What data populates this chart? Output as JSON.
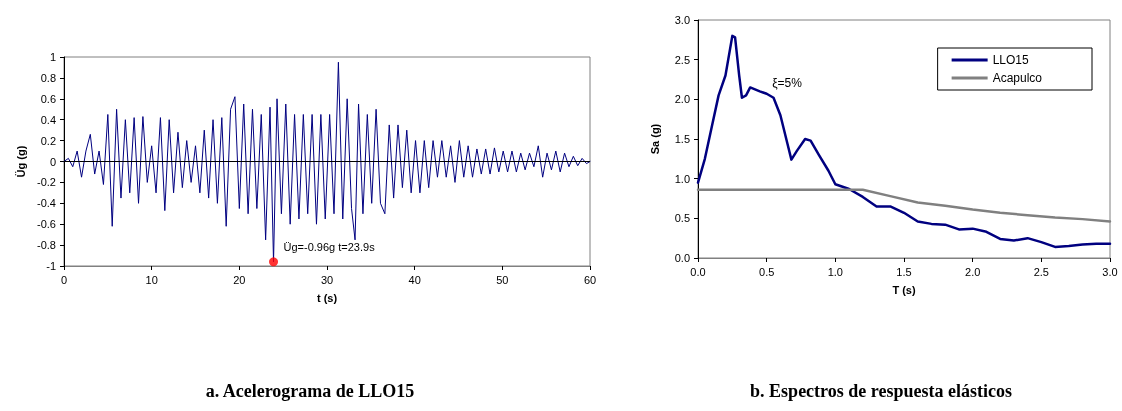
{
  "chart_data": [
    {
      "type": "line",
      "title": "a. Acelerograma de LLO15",
      "xlabel": "t (s)",
      "ylabel": "Üg (g)",
      "xlim": [
        0,
        60
      ],
      "xticks": [
        0,
        10,
        20,
        30,
        40,
        50,
        60
      ],
      "ylim": [
        -1,
        1
      ],
      "yticks": [
        -1,
        -0.8,
        -0.6,
        -0.4,
        -0.2,
        0,
        0.2,
        0.4,
        0.6,
        0.8,
        1
      ],
      "grid": false,
      "legend": false,
      "marker": "none",
      "series": [
        {
          "color": "#000080",
          "x": [
            0,
            0.5,
            1,
            1.5,
            2,
            2.5,
            3,
            3.5,
            4,
            4.5,
            5,
            5.5,
            6,
            6.5,
            7,
            7.5,
            8,
            8.5,
            9,
            9.5,
            10,
            10.5,
            11,
            11.5,
            12,
            12.5,
            13,
            13.5,
            14,
            14.5,
            15,
            15.5,
            16,
            16.5,
            17,
            17.5,
            18,
            18.5,
            19,
            19.5,
            20,
            20.5,
            21,
            21.5,
            22,
            22.5,
            23,
            23.5,
            23.9,
            24.3,
            24.8,
            25.3,
            25.8,
            26.3,
            26.8,
            27.3,
            27.8,
            28.3,
            28.8,
            29.3,
            29.8,
            30.3,
            30.8,
            31.3,
            31.8,
            32.3,
            32.8,
            33.2,
            33.6,
            34.1,
            34.6,
            35.1,
            35.6,
            36.1,
            36.6,
            37.1,
            37.6,
            38.1,
            38.6,
            39.1,
            39.6,
            40.1,
            40.6,
            41.1,
            41.6,
            42.1,
            42.6,
            43.1,
            43.6,
            44.1,
            44.6,
            45.1,
            45.6,
            46.1,
            46.6,
            47.1,
            47.6,
            48.1,
            48.6,
            49.1,
            49.6,
            50.1,
            50.6,
            51.1,
            51.6,
            52.1,
            52.6,
            53.1,
            53.6,
            54.1,
            54.6,
            55.1,
            55.6,
            56.1,
            56.6,
            57.1,
            57.6,
            58.1,
            58.6,
            59.1,
            59.6,
            60
          ],
          "values": [
            0,
            0.03,
            -0.05,
            0.1,
            -0.15,
            0.1,
            0.26,
            -0.12,
            0.1,
            -0.22,
            0.45,
            -0.62,
            0.5,
            -0.35,
            0.4,
            -0.3,
            0.42,
            -0.4,
            0.43,
            -0.2,
            0.15,
            -0.3,
            0.42,
            -0.47,
            0.4,
            -0.3,
            0.28,
            -0.25,
            0.2,
            -0.2,
            0.15,
            -0.3,
            0.3,
            -0.35,
            0.4,
            -0.4,
            0.42,
            -0.62,
            0.5,
            0.62,
            -0.45,
            0.55,
            -0.5,
            0.5,
            -0.45,
            0.45,
            -0.75,
            0.52,
            -0.96,
            0.6,
            -0.5,
            0.55,
            -0.6,
            0.45,
            -0.55,
            0.45,
            -0.5,
            0.45,
            -0.6,
            0.45,
            -0.55,
            0.45,
            -0.5,
            0.95,
            -0.55,
            0.6,
            -0.45,
            -0.75,
            0.55,
            -0.5,
            0.45,
            -0.4,
            0.5,
            -0.4,
            -0.5,
            0.35,
            -0.35,
            0.35,
            -0.25,
            0.3,
            -0.3,
            0.2,
            -0.3,
            0.2,
            -0.25,
            0.2,
            -0.15,
            0.2,
            -0.15,
            0.15,
            -0.2,
            0.2,
            -0.15,
            0.15,
            -0.15,
            0.12,
            -0.12,
            0.12,
            -0.12,
            0.13,
            -0.1,
            0.1,
            -0.1,
            0.1,
            -0.1,
            0.08,
            -0.08,
            0.08,
            -0.05,
            0.15,
            -0.15,
            0.08,
            -0.08,
            0.1,
            -0.1,
            0.08,
            -0.05,
            0.05,
            -0.04,
            0.03,
            -0.02,
            0
          ]
        },
        {
          "type": "scatter",
          "color": "#ff0000",
          "marker": "circle",
          "x": [
            23.9
          ],
          "values": [
            -0.96
          ]
        }
      ],
      "ref_lines": [
        {
          "axis": "y",
          "value": 0,
          "color": "#000000"
        }
      ],
      "annotations": [
        {
          "text": "Üg=-0.96g t=23.9s",
          "x": 23.9,
          "y": -0.96
        }
      ]
    },
    {
      "type": "line",
      "title": "b. Espectros de respuesta elásticos",
      "xlabel": "T (s)",
      "ylabel": "Sa (g)",
      "xlim": [
        0,
        3
      ],
      "xticks": [
        {
          "value": 0,
          "label": "0.0"
        },
        {
          "value": 0.5,
          "label": "0.5"
        },
        {
          "value": 1,
          "label": "1.0"
        },
        {
          "value": 1.5,
          "label": "1.5"
        },
        {
          "value": 2,
          "label": "2.0"
        },
        {
          "value": 2.5,
          "label": "2.5"
        },
        {
          "value": 3,
          "label": "3.0"
        }
      ],
      "ylim": [
        0,
        3
      ],
      "yticks": [
        {
          "value": 0,
          "label": "0.0"
        },
        {
          "value": 0.5,
          "label": "0.5"
        },
        {
          "value": 1,
          "label": "1.0"
        },
        {
          "value": 1.5,
          "label": "1.5"
        },
        {
          "value": 2,
          "label": "2.0"
        },
        {
          "value": 2.5,
          "label": "2.5"
        },
        {
          "value": 3,
          "label": "3.0"
        }
      ],
      "grid": false,
      "legend": "top right",
      "marker": "none",
      "series": [
        {
          "name": "LLO15",
          "color": "#000080",
          "x": [
            0,
            0.05,
            0.1,
            0.15,
            0.2,
            0.25,
            0.27,
            0.3,
            0.32,
            0.35,
            0.38,
            0.45,
            0.5,
            0.55,
            0.6,
            0.65,
            0.68,
            0.72,
            0.78,
            0.82,
            0.88,
            0.95,
            1.0,
            1.1,
            1.2,
            1.3,
            1.4,
            1.5,
            1.6,
            1.7,
            1.8,
            1.9,
            2.0,
            2.1,
            2.2,
            2.3,
            2.4,
            2.5,
            2.6,
            2.7,
            2.8,
            2.9,
            3.0
          ],
          "values": [
            0.95,
            1.25,
            1.65,
            2.05,
            2.3,
            2.8,
            2.78,
            2.3,
            2.02,
            2.05,
            2.15,
            2.1,
            2.07,
            2.02,
            1.8,
            1.45,
            1.24,
            1.35,
            1.5,
            1.48,
            1.3,
            1.1,
            0.93,
            0.87,
            0.77,
            0.65,
            0.65,
            0.57,
            0.46,
            0.43,
            0.42,
            0.36,
            0.37,
            0.33,
            0.24,
            0.22,
            0.25,
            0.2,
            0.14,
            0.15,
            0.17,
            0.18,
            0.18
          ]
        },
        {
          "name": "Acapulco",
          "color": "#808080",
          "x": [
            0,
            1.2,
            1.4,
            1.6,
            1.8,
            2.0,
            2.2,
            2.4,
            2.6,
            2.8,
            3.0
          ],
          "values": [
            0.86,
            0.86,
            0.78,
            0.7,
            0.66,
            0.61,
            0.57,
            0.54,
            0.51,
            0.49,
            0.46
          ]
        }
      ],
      "annotations": [
        "ξ=5%"
      ]
    }
  ]
}
